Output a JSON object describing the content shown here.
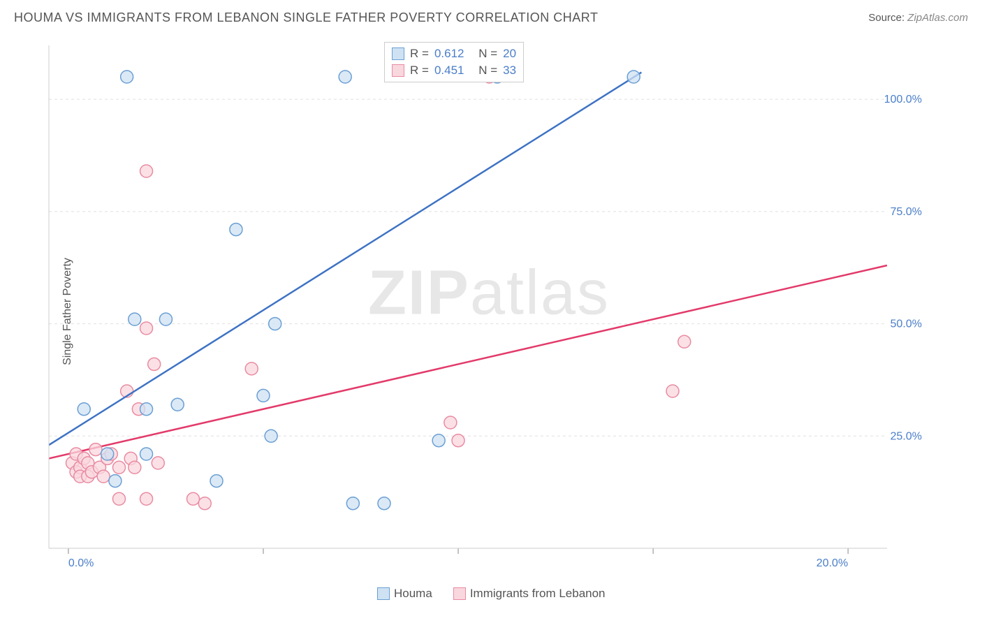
{
  "chart": {
    "title": "HOUMA VS IMMIGRANTS FROM LEBANON SINGLE FATHER POVERTY CORRELATION CHART",
    "source_label": "Source:",
    "source_name": "ZipAtlas.com",
    "y_axis_label": "Single Father Poverty",
    "watermark_a": "ZIP",
    "watermark_b": "atlas",
    "type": "scatter",
    "background_color": "#ffffff",
    "grid_color": "#e0e0e0",
    "axis_line_color": "#cccccc",
    "tick_color": "#888888",
    "x_range": [
      -0.5,
      21
    ],
    "y_range": [
      0,
      112
    ],
    "y_ticks": [
      {
        "v": 25,
        "label": "25.0%"
      },
      {
        "v": 50,
        "label": "50.0%"
      },
      {
        "v": 75,
        "label": "75.0%"
      },
      {
        "v": 100,
        "label": "100.0%"
      }
    ],
    "x_ticks": [
      {
        "v": 0,
        "label": "0.0%"
      },
      {
        "v": 20,
        "label": "20.0%"
      }
    ],
    "x_minor_ticks": [
      5,
      10,
      15
    ],
    "series": [
      {
        "name": "Houma",
        "color_fill": "#cfe2f3",
        "color_stroke": "#6a9fd4",
        "line_color": "#3d72c4",
        "marker_radius": 9,
        "r_value": "0.612",
        "n_value": "20",
        "trend": {
          "x1": -0.5,
          "y1": 23,
          "x2": 14.7,
          "y2": 106
        },
        "points": [
          [
            0.4,
            31
          ],
          [
            1.0,
            21
          ],
          [
            1.2,
            15
          ],
          [
            1.5,
            105
          ],
          [
            1.7,
            51
          ],
          [
            2.0,
            21
          ],
          [
            2.0,
            31
          ],
          [
            2.5,
            51
          ],
          [
            2.8,
            32
          ],
          [
            3.8,
            15
          ],
          [
            4.3,
            71
          ],
          [
            5.0,
            34
          ],
          [
            5.2,
            25
          ],
          [
            5.3,
            50
          ],
          [
            7.1,
            105
          ],
          [
            7.3,
            10
          ],
          [
            8.1,
            10
          ],
          [
            9.5,
            24
          ],
          [
            11.0,
            105
          ],
          [
            14.5,
            105
          ]
        ]
      },
      {
        "name": "Immigrants from Lebanon",
        "color_fill": "#f9d7de",
        "color_stroke": "#e98ba2",
        "line_color": "#e33a6a",
        "marker_radius": 9,
        "r_value": "0.451",
        "n_value": "33",
        "trend": {
          "x1": -0.5,
          "y1": 20,
          "x2": 21,
          "y2": 63
        },
        "points": [
          [
            0.1,
            19
          ],
          [
            0.2,
            17
          ],
          [
            0.2,
            21
          ],
          [
            0.3,
            18
          ],
          [
            0.3,
            16
          ],
          [
            0.4,
            20
          ],
          [
            0.5,
            16
          ],
          [
            0.5,
            19
          ],
          [
            0.6,
            17
          ],
          [
            0.7,
            22
          ],
          [
            0.8,
            18
          ],
          [
            0.9,
            16
          ],
          [
            1.0,
            20
          ],
          [
            1.1,
            21
          ],
          [
            1.3,
            18
          ],
          [
            1.3,
            11
          ],
          [
            1.5,
            35
          ],
          [
            1.6,
            20
          ],
          [
            1.7,
            18
          ],
          [
            1.8,
            31
          ],
          [
            2.0,
            11
          ],
          [
            2.0,
            84
          ],
          [
            2.0,
            49
          ],
          [
            2.2,
            41
          ],
          [
            2.3,
            19
          ],
          [
            3.2,
            11
          ],
          [
            3.5,
            10
          ],
          [
            4.7,
            40
          ],
          [
            9.8,
            28
          ],
          [
            10.0,
            24
          ],
          [
            15.5,
            35
          ],
          [
            15.8,
            46
          ],
          [
            10.8,
            105
          ]
        ]
      }
    ],
    "top_legend_labels": {
      "r": "R =",
      "n": "N ="
    },
    "tick_label_color": "#4a7ec9",
    "tick_label_fontsize": 16
  }
}
